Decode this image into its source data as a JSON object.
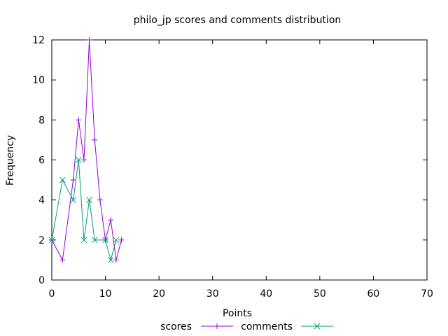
{
  "chart_data": {
    "type": "line",
    "title": "philo_jp scores and comments distribution",
    "xlabel": "Points",
    "ylabel": "Frequency",
    "xlim": [
      0,
      70
    ],
    "ylim": [
      0,
      12
    ],
    "xticks": [
      0,
      10,
      20,
      30,
      40,
      50,
      60,
      70
    ],
    "yticks": [
      0,
      2,
      4,
      6,
      8,
      10,
      12
    ],
    "grid": false,
    "legend_position": "bottom-center",
    "series": [
      {
        "name": "scores",
        "color": "#9400d3",
        "marker": "plus",
        "x": [
          0,
          2,
          4,
          5,
          6,
          7,
          8,
          9,
          10,
          11,
          12,
          13
        ],
        "y": [
          2,
          1,
          5,
          8,
          6,
          12,
          7,
          4,
          2,
          3,
          1,
          2
        ]
      },
      {
        "name": "comments",
        "color": "#009e73",
        "marker": "cross",
        "x": [
          0,
          2,
          4,
          5,
          6,
          7,
          8,
          10,
          11,
          12
        ],
        "y": [
          2,
          5,
          4,
          6,
          2,
          4,
          2,
          2,
          1,
          2
        ]
      }
    ]
  }
}
